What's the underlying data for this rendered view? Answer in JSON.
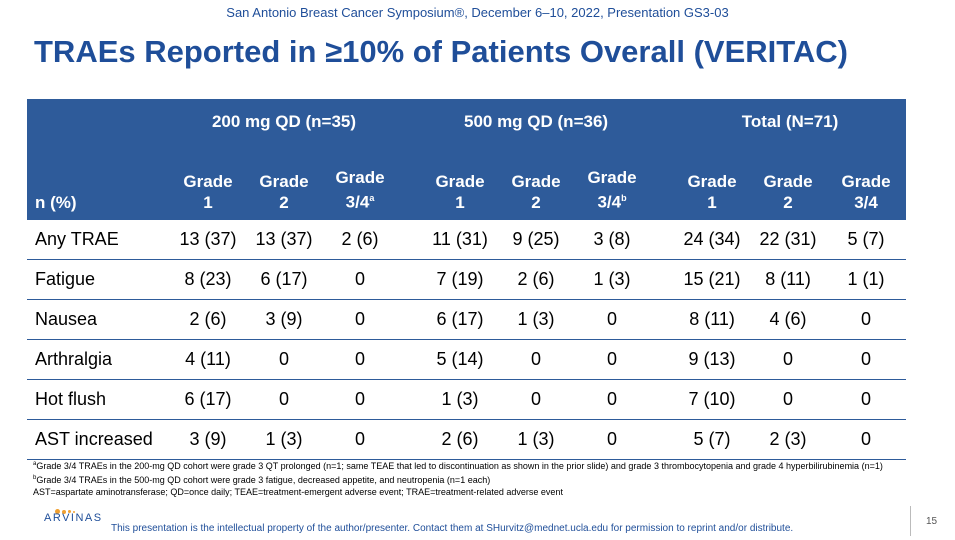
{
  "conference": "San Antonio Breast Cancer Symposium®, December 6–10, 2022, Presentation GS3-03",
  "title": "TRAEs Reported in ≥10% of Patients Overall (VERITAC)",
  "table": {
    "groups": [
      "200 mg QD (n=35)",
      "500 mg QD (n=36)",
      "Total (N=71)"
    ],
    "row_header": "n (%)",
    "grade_headers": [
      {
        "line1": "Grade",
        "line2": "1",
        "sup": ""
      },
      {
        "line1": "Grade",
        "line2": "2",
        "sup": ""
      },
      {
        "line1": "Grade",
        "line2": "3/4",
        "sup": "a"
      },
      {
        "line1": "Grade",
        "line2": "1",
        "sup": ""
      },
      {
        "line1": "Grade",
        "line2": "2",
        "sup": ""
      },
      {
        "line1": "Grade",
        "line2": "3/4",
        "sup": "b"
      },
      {
        "line1": "Grade",
        "line2": "1",
        "sup": ""
      },
      {
        "line1": "Grade",
        "line2": "2",
        "sup": ""
      },
      {
        "line1": "Grade",
        "line2": "3/4",
        "sup": ""
      }
    ],
    "rows": [
      {
        "label": "Any TRAE",
        "cells": [
          "13 (37)",
          "13 (37)",
          "2 (6)",
          "11 (31)",
          "9 (25)",
          "3 (8)",
          "24 (34)",
          "22 (31)",
          "5 (7)"
        ]
      },
      {
        "label": "Fatigue",
        "cells": [
          "8 (23)",
          "6 (17)",
          "0",
          "7 (19)",
          "2 (6)",
          "1 (3)",
          "15 (21)",
          "8 (11)",
          "1 (1)"
        ]
      },
      {
        "label": "Nausea",
        "cells": [
          "2 (6)",
          "3 (9)",
          "0",
          "6 (17)",
          "1 (3)",
          "0",
          "8 (11)",
          "4 (6)",
          "0"
        ]
      },
      {
        "label": "Arthralgia",
        "cells": [
          "4 (11)",
          "0",
          "0",
          "5 (14)",
          "0",
          "0",
          "9 (13)",
          "0",
          "0"
        ]
      },
      {
        "label": "Hot flush",
        "cells": [
          "6 (17)",
          "0",
          "0",
          "1 (3)",
          "0",
          "0",
          "7 (10)",
          "0",
          "0"
        ]
      },
      {
        "label": "AST increased",
        "cells": [
          "3 (9)",
          "1 (3)",
          "0",
          "2 (6)",
          "1 (3)",
          "0",
          "5 (7)",
          "2 (3)",
          "0"
        ]
      }
    ]
  },
  "footnotes": {
    "a_mark": "a",
    "a": "Grade 3/4 TRAEs in the 200-mg QD cohort were grade 3 QT prolonged (n=1; same TEAE that led to discontinuation as shown in the prior slide) and grade 3 thrombocytopenia and grade 4 hyperbilirubinemia (n=1)",
    "b_mark": "b",
    "b": "Grade 3/4 TRAEs in the 500-mg QD cohort were grade 3 fatigue, decreased appetite, and neutropenia (n=1 each)",
    "abbrev": "AST=aspartate aminotransferase; QD=once daily; TEAE=treatment-emergent adverse event; TRAE=treatment-related adverse event"
  },
  "logo_text": "ARVINAS",
  "logo_color": "#f0a030",
  "disclaimer": "This presentation is the intellectual property of the author/presenter. Contact them at SHurvitz@mednet.ucla.edu for permission to reprint and/or distribute.",
  "page_number": "15",
  "colors": {
    "header_bg": "#2e5b9a",
    "title": "#1f4e99"
  }
}
